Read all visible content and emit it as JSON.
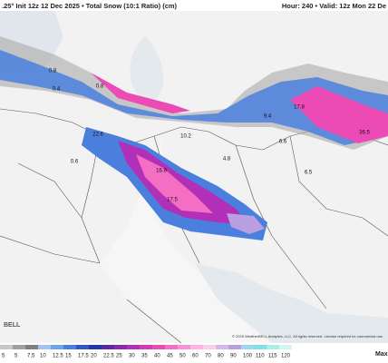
{
  "header": {
    "left": ".25° Init 12z 12 Dec 2025 • Total Snow (10:1 Ratio) (cm)",
    "right": "Hour: 240 • Valid: 12z Mon 22 De"
  },
  "map_labels": [
    "0.8",
    "0.4",
    "0.8",
    "22.6",
    "0.6",
    "16.9",
    "17.5",
    "10.2",
    "9.4",
    "6.6",
    "17.8",
    "36.5",
    "4.8",
    "6.5"
  ],
  "legend": {
    "labels": [
      "5",
      "5",
      "7.5",
      "10",
      "12.5",
      "15",
      "17.5",
      "20",
      "22.5",
      "25",
      "30",
      "35",
      "40",
      "45",
      "50",
      "60",
      "70",
      "80",
      "90",
      "100",
      "110",
      "115",
      "120"
    ],
    "colors": [
      "#c8c8c8",
      "#a0a0a0",
      "#7f7f7f",
      "#9fc5f0",
      "#6fa4e8",
      "#4a7fde",
      "#2f57c8",
      "#2636a8",
      "#5a2aa6",
      "#8a2bb0",
      "#b22fb8",
      "#d63ab8",
      "#ec4bb5",
      "#f46ec4",
      "#f893d3",
      "#fbb4e1",
      "#f8cfe8",
      "#d6b8e6",
      "#b99fe0",
      "#9fd6ee",
      "#7fe0e6",
      "#a6f0e8",
      "#d0f7f0"
    ],
    "max": "Max"
  },
  "logo": "BELL",
  "footer": "© 2025 WeatherBELL Analytics, LLC. All rights reserved. License required for commercial use."
}
